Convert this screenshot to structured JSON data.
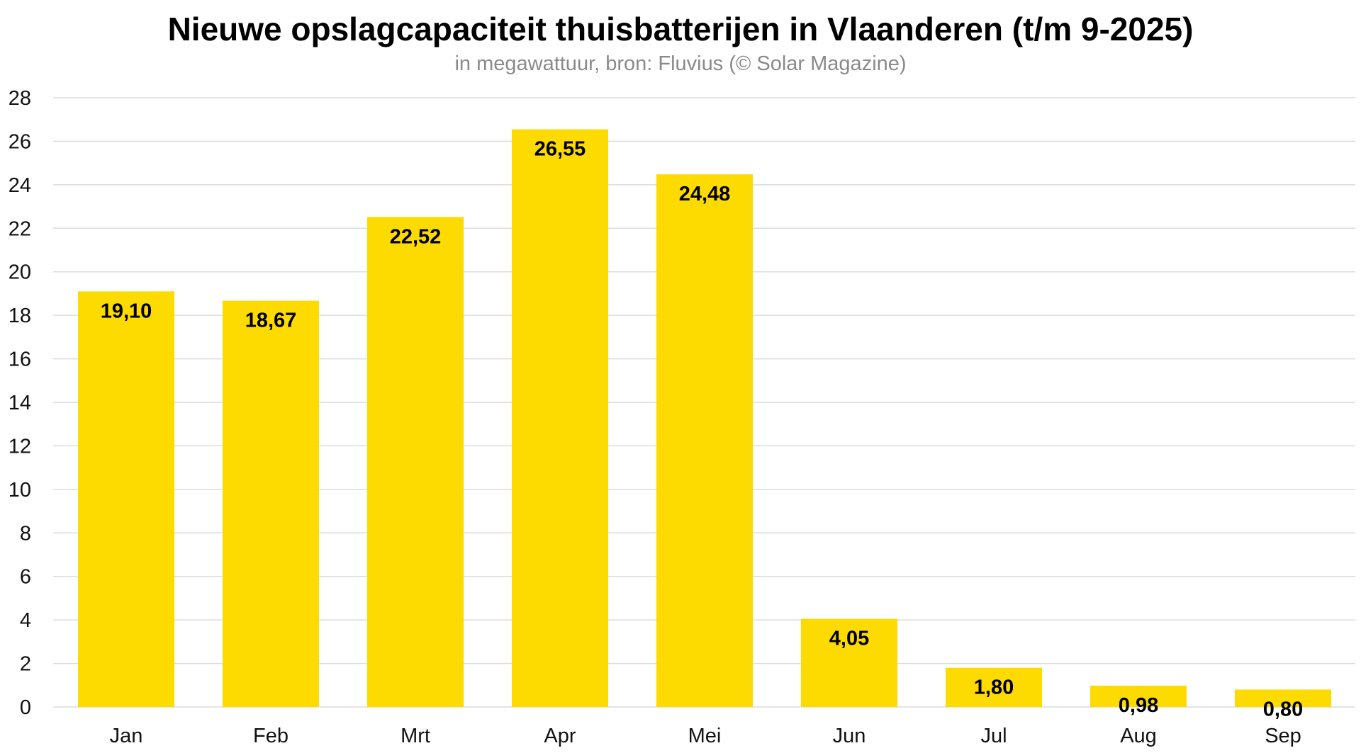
{
  "chart_data": {
    "type": "bar",
    "title": "Nieuwe opslagcapaciteit thuisbatterijen in Vlaanderen (t/m 9-2025)",
    "subtitle": "in megawattuur, bron: Fluvius (© Solar Magazine)",
    "xlabel": "",
    "ylabel": "",
    "categories": [
      "Jan",
      "Feb",
      "Mrt",
      "Apr",
      "Mei",
      "Jun",
      "Jul",
      "Aug",
      "Sep"
    ],
    "values": [
      19.1,
      18.67,
      22.52,
      26.55,
      24.48,
      4.05,
      1.8,
      0.98,
      0.8
    ],
    "value_labels": [
      "19,10",
      "18,67",
      "22,52",
      "26,55",
      "24,48",
      "4,05",
      "1,80",
      "0,98",
      "0,80"
    ],
    "ylim": [
      0,
      28
    ],
    "yticks": [
      0,
      2,
      4,
      6,
      8,
      10,
      12,
      14,
      16,
      18,
      20,
      22,
      24,
      26,
      28
    ],
    "grid": true,
    "legend": "none",
    "colors": {
      "bar": "#FDDB00",
      "grid": "#dcdcdc",
      "text": "#000000",
      "subtitle": "#8a8a8a"
    }
  }
}
